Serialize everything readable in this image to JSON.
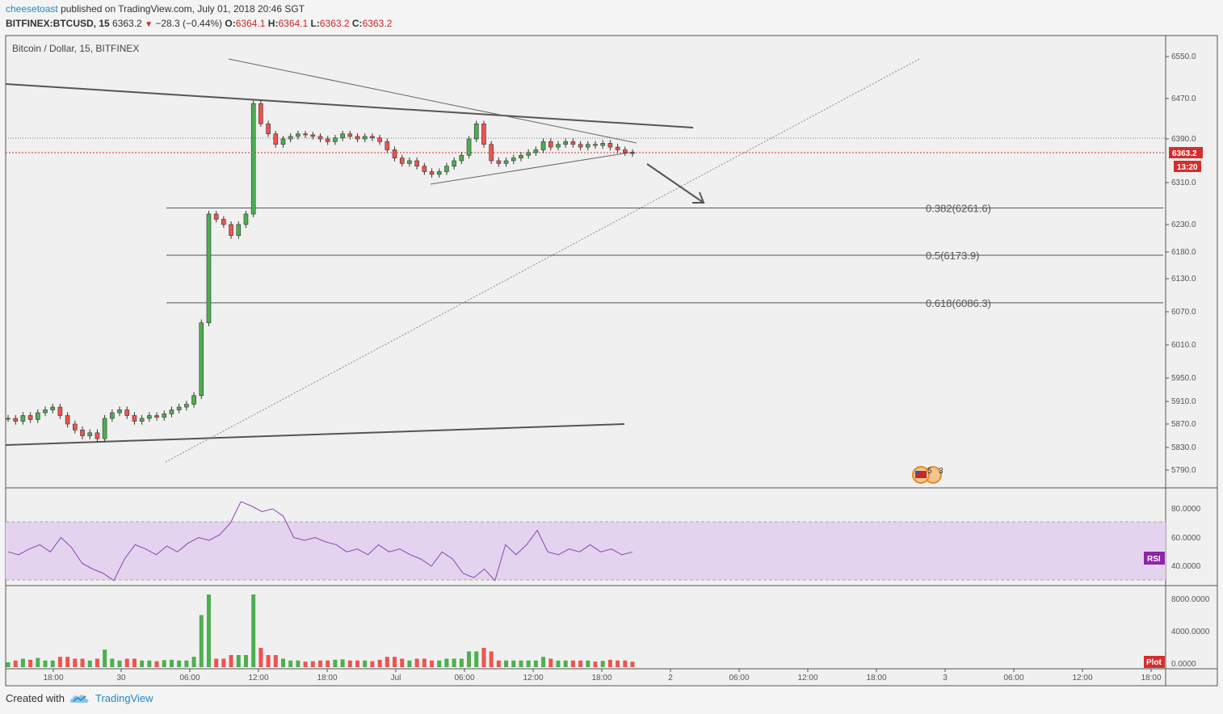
{
  "header": {
    "user": "cheesetoast",
    "published": "published on TradingView.com, July 01, 2018 20:46 SGT",
    "symbol": "BITFINEX:BTCUSD, 15",
    "last": "6363.2",
    "arrow": "▼",
    "change": "−28.3 (−0.44%)",
    "o_label": "O:",
    "o_value": "6364.1",
    "h_label": "H:",
    "h_value": "6364.1",
    "l_label": "L:",
    "l_value": "6363.2",
    "c_label": "C:",
    "c_value": "6363.2"
  },
  "footer": {
    "created_with": "Created with",
    "brand": "TradingView",
    "logo_icon": "tradingview-cloud-icon"
  },
  "chart_data": {
    "type": "candlestick",
    "title": "Bitcoin / Dollar, 15, BITFINEX",
    "last_price_label": "6363.2",
    "countdown_label": "13:20",
    "price_axis_ticks": [
      "6550.0",
      "6470.0",
      "6390.0",
      "6310.0",
      "6230.0",
      "6180.0",
      "6130.0",
      "6070.0",
      "6010.0",
      "5950.0",
      "5910.0",
      "5870.0",
      "5830.0",
      "5790.0"
    ],
    "time_axis_ticks": [
      "18:00",
      "30",
      "06:00",
      "12:00",
      "18:00",
      "Jul",
      "06:00",
      "12:00",
      "18:00",
      "2",
      "06:00",
      "12:00",
      "18:00",
      "3",
      "06:00",
      "12:00",
      "18:00"
    ],
    "fib_levels": [
      {
        "label": "0.382(6261.6)",
        "value": 6261.6
      },
      {
        "label": "0.5(6173.9)",
        "value": 6173.9
      },
      {
        "label": "0.618(6086.3)",
        "value": 6086.3
      }
    ],
    "last_price": 6363.2,
    "close_series_approx": [
      5880,
      5875,
      5885,
      5878,
      5890,
      5895,
      5900,
      5885,
      5870,
      5860,
      5850,
      5855,
      5845,
      5880,
      5890,
      5895,
      5885,
      5875,
      5880,
      5885,
      5882,
      5888,
      5895,
      5900,
      5905,
      5920,
      6050,
      6250,
      6240,
      6230,
      6210,
      6230,
      6250,
      6460,
      6420,
      6400,
      6380,
      6390,
      6395,
      6400,
      6398,
      6395,
      6390,
      6385,
      6392,
      6400,
      6395,
      6390,
      6395,
      6392,
      6385,
      6370,
      6355,
      6345,
      6350,
      6340,
      6330,
      6325,
      6330,
      6340,
      6350,
      6360,
      6390,
      6420,
      6380,
      6350,
      6345,
      6350,
      6355,
      6360,
      6365,
      6370,
      6385,
      6375,
      6380,
      6385,
      6380,
      6375,
      6380,
      6378,
      6382,
      6375,
      6370,
      6365,
      6363.2
    ],
    "rsi": {
      "label": "RSI",
      "ticks": [
        "80.0000",
        "60.0000",
        "40.0000"
      ],
      "band": [
        30,
        70
      ],
      "values_approx": [
        50,
        48,
        52,
        55,
        50,
        60,
        53,
        42,
        38,
        35,
        30,
        45,
        55,
        52,
        48,
        54,
        50,
        56,
        60,
        58,
        62,
        70,
        85,
        82,
        78,
        80,
        75,
        60,
        58,
        60,
        57,
        55,
        50,
        52,
        48,
        55,
        50,
        52,
        48,
        45,
        40,
        50,
        45,
        35,
        32,
        38,
        30,
        55,
        48,
        55,
        65,
        50,
        48,
        52,
        50,
        55,
        50,
        52,
        48,
        50
      ]
    },
    "volume": {
      "label": "Plot",
      "ticks": [
        "8000.0000",
        "4000.0000",
        "0.0000"
      ]
    }
  }
}
